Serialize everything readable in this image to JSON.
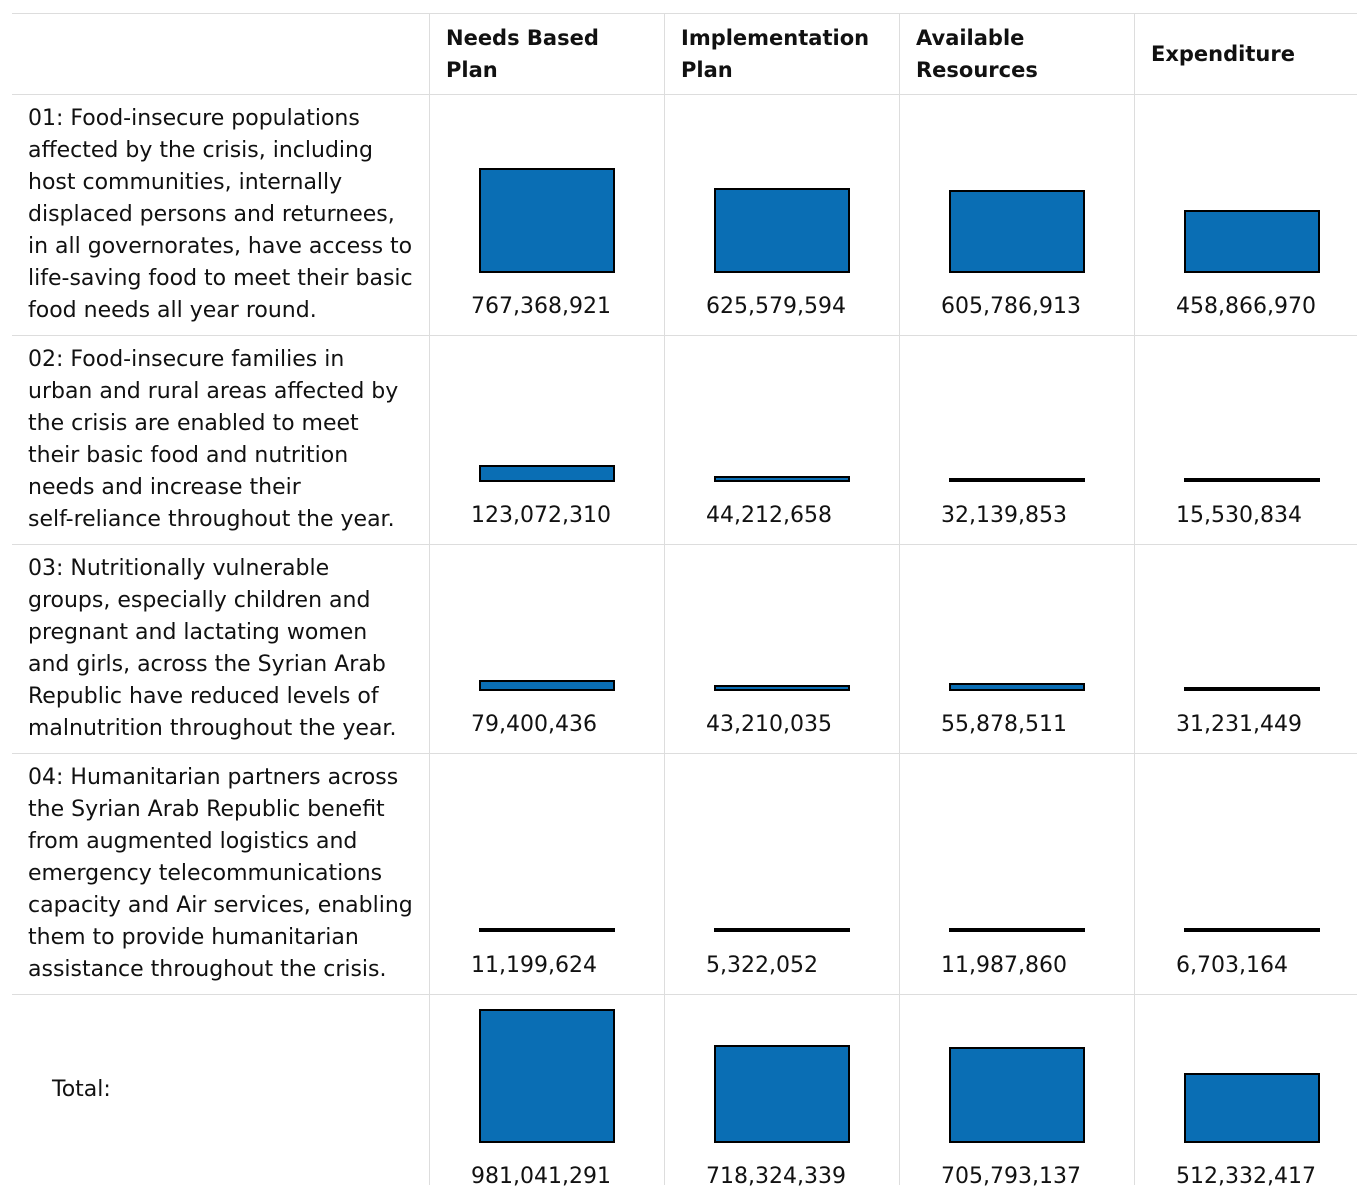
{
  "chart_data": {
    "type": "table",
    "columns": [
      "",
      "Needs Based Plan",
      "Implementation Plan",
      "Available Resources",
      "Expenditure"
    ],
    "rows": [
      {
        "label": "01: Food-insecure populations\naffected by the crisis, including\nhost communities, internally\ndisplaced persons and returnees,\nin all governorates, have access to\nlife-saving food to meet their basic\nfood needs all year round.",
        "values": [
          767368921,
          625579594,
          605786913,
          458866970
        ],
        "display": [
          "767,368,921",
          "625,579,594",
          "605,786,913",
          "458,866,970"
        ]
      },
      {
        "label": "02: Food-insecure families in\nurban and rural areas affected by\nthe crisis are enabled to meet\ntheir basic food and nutrition\nneeds and increase their\nself-reliance throughout the year.",
        "values": [
          123072310,
          44212658,
          32139853,
          15530834
        ],
        "display": [
          "123,072,310",
          "44,212,658",
          "32,139,853",
          "15,530,834"
        ]
      },
      {
        "label": "03: Nutritionally vulnerable\ngroups, especially children and\npregnant and lactating women\nand girls, across the Syrian Arab\nRepublic have reduced levels of\nmalnutrition throughout the year.",
        "values": [
          79400436,
          43210035,
          55878511,
          31231449
        ],
        "display": [
          "79,400,436",
          "43,210,035",
          "55,878,511",
          "31,231,449"
        ]
      },
      {
        "label": "04: Humanitarian partners across\nthe Syrian Arab Republic benefit\nfrom augmented logistics and\nemergency telecommunications\ncapacity and Air services, enabling\nthem to provide humanitarian\nassistance throughout the crisis.",
        "values": [
          11199624,
          5322052,
          11987860,
          6703164
        ],
        "display": [
          "11,199,624",
          "5,322,052",
          "11,987,860",
          "6,703,164"
        ]
      }
    ],
    "total": {
      "label": "Total:",
      "values": [
        981041291,
        718324339,
        705793137,
        512332417
      ],
      "display": [
        "981,041,291",
        "718,324,339",
        "705,793,137",
        "512,332,417"
      ]
    },
    "bar_color": "#0a6eb4",
    "bar_border": "#000000"
  }
}
